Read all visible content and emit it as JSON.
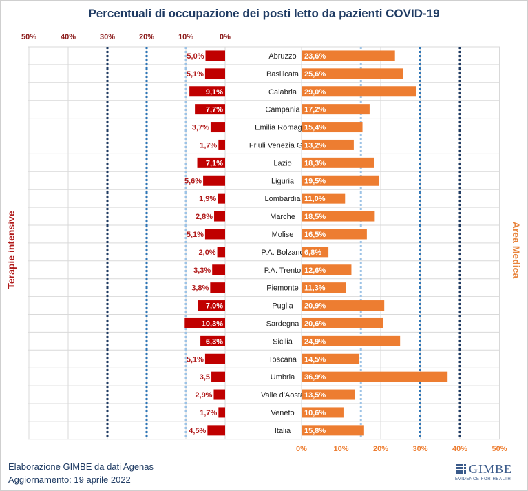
{
  "header": {
    "title": "Percentuali di occupazione dei posti letto da pazienti COVID-19"
  },
  "labels": {
    "left": "Terapie intensive",
    "right": "Area Medica"
  },
  "footer": {
    "line1": "Elaborazione GIMBE da dati Agenas",
    "line2": "Aggiornamento: 19 aprile 2022"
  },
  "logo": {
    "name": "GIMBE",
    "tagline": "EVIDENCE FOR HEALTH"
  },
  "colors": {
    "left": "#c00000",
    "right": "#ed7d31",
    "title": "#1f3b63"
  },
  "chart_data": {
    "type": "bar",
    "title": "Percentuali di occupazione dei posti letto da pazienti COVID-19",
    "categories": [
      "Abruzzo",
      "Basilicata",
      "Calabria",
      "Campania",
      "Emilia Romagna",
      "Friuli Venezia Giulia",
      "Lazio",
      "Liguria",
      "Lombardia",
      "Marche",
      "Molise",
      "P.A. Bolzano",
      "P.A. Trento",
      "Piemonte",
      "Puglia",
      "Sardegna",
      "Sicilia",
      "Toscana",
      "Umbria",
      "Valle d'Aosta",
      "Veneto",
      "Italia"
    ],
    "series": [
      {
        "name": "Terapie intensive",
        "values": [
          5.0,
          5.1,
          9.1,
          7.7,
          3.7,
          1.7,
          7.1,
          5.6,
          1.9,
          2.8,
          5.1,
          2.0,
          3.3,
          3.8,
          7.0,
          10.3,
          6.3,
          5.1,
          3.5,
          2.9,
          1.7,
          4.5
        ],
        "labels": [
          "5,0%",
          "5,1%",
          "9,1%",
          "7,7%",
          "3,7%",
          "1,7%",
          "7,1%",
          "5,6%",
          "1,9%",
          "2,8%",
          "5,1%",
          "2,0%",
          "3,3%",
          "3,8%",
          "7,0%",
          "10,3%",
          "6,3%",
          "5,1%",
          "3,5",
          "2,9%",
          "1,7%",
          "4,5%"
        ]
      },
      {
        "name": "Area Medica",
        "values": [
          23.6,
          25.6,
          29.0,
          17.2,
          15.4,
          13.2,
          18.3,
          19.5,
          11.0,
          18.5,
          16.5,
          6.8,
          12.6,
          11.3,
          20.9,
          20.6,
          24.9,
          14.5,
          36.9,
          13.5,
          10.6,
          15.8
        ],
        "labels": [
          "23,6%",
          "25,6%",
          "29,0%",
          "17,2%",
          "15,4%",
          "13,2%",
          "18,3%",
          "19,5%",
          "11,0%",
          "18,5%",
          "16,5%",
          "6,8%",
          "12,6%",
          "11,3%",
          "20,9%",
          "20,6%",
          "24,9%",
          "14,5%",
          "36,9%",
          "13,5%",
          "10,6%",
          "15,8%"
        ]
      }
    ],
    "left_axis": {
      "ticks": [
        "50%",
        "40%",
        "30%",
        "20%",
        "10%",
        "0%"
      ],
      "range": [
        0,
        50
      ]
    },
    "right_axis": {
      "ticks": [
        "0%",
        "10%",
        "20%",
        "30%",
        "40%",
        "50%"
      ],
      "range": [
        0,
        50
      ]
    },
    "thresholds_left": [
      10,
      20,
      30
    ],
    "thresholds_right": [
      15,
      30,
      40
    ],
    "grid": true
  }
}
